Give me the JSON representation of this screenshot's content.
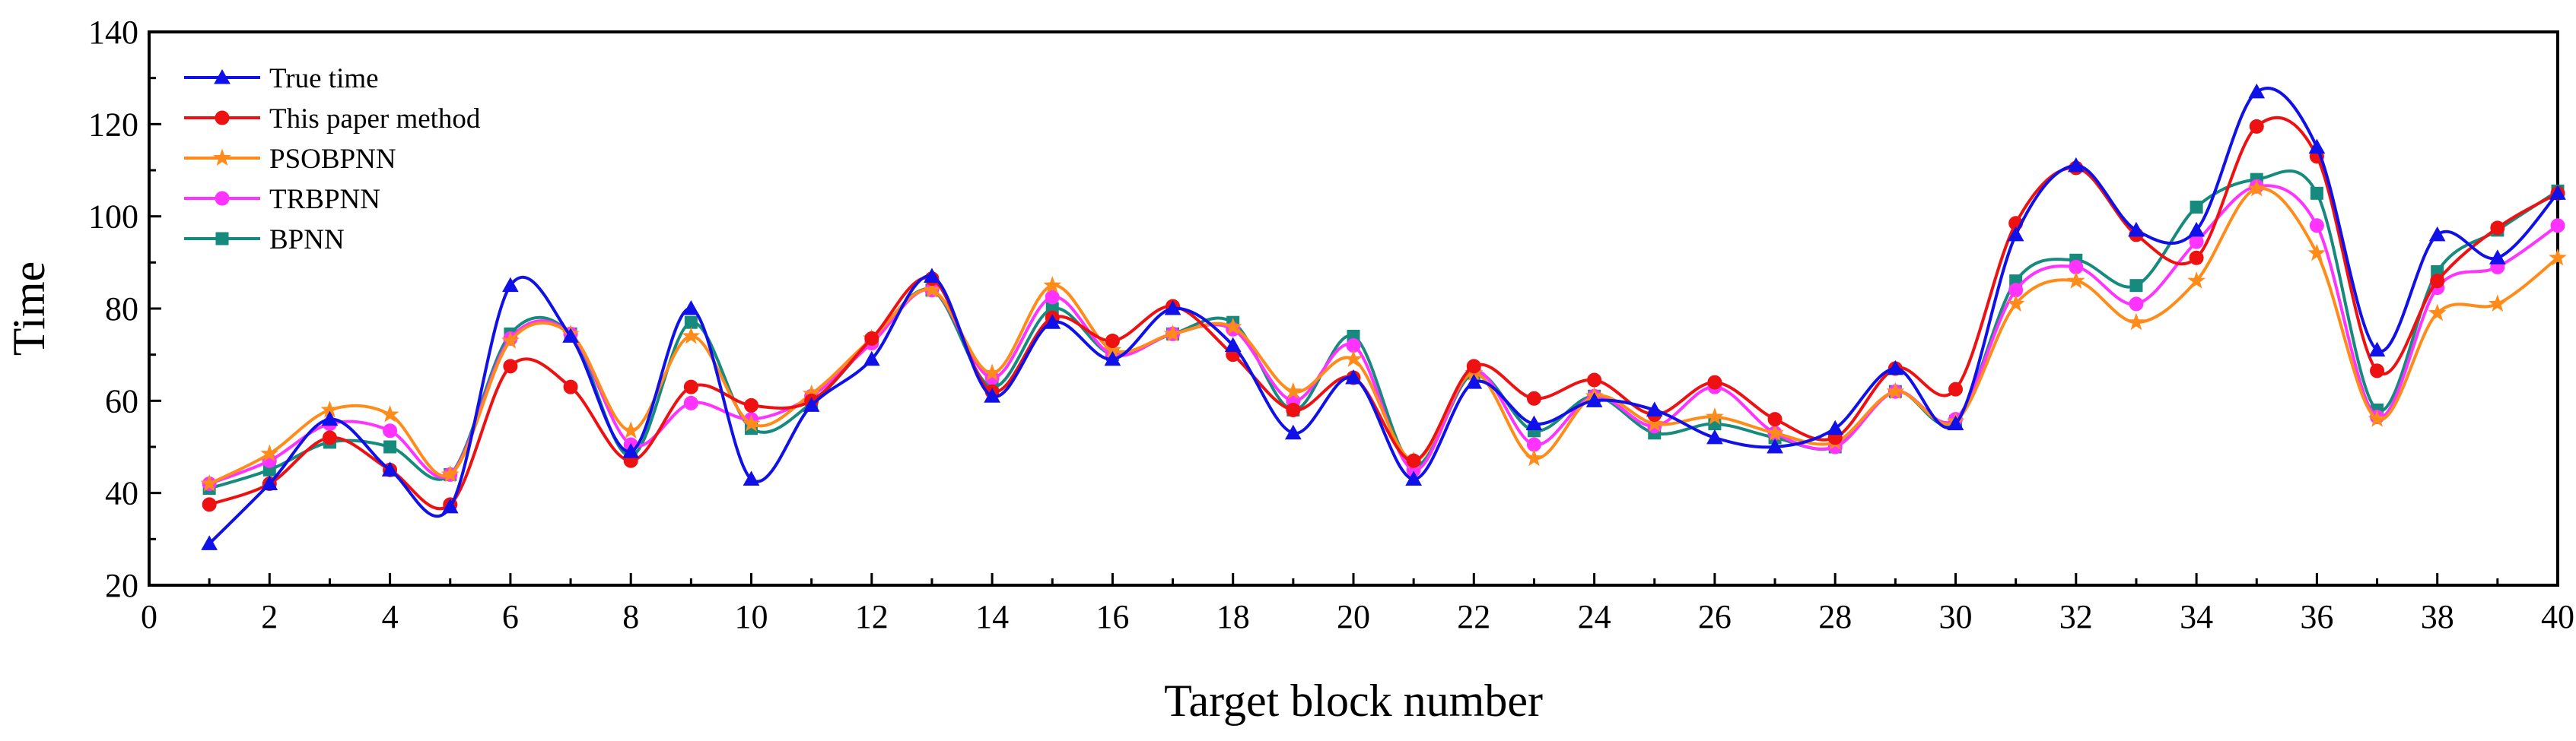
{
  "chart_data": {
    "type": "line",
    "title": "",
    "xlabel": "Target block number",
    "ylabel": "Time",
    "xlim": [
      0,
      40
    ],
    "ylim": [
      20,
      140
    ],
    "xticks": [
      0,
      2,
      4,
      6,
      8,
      10,
      12,
      14,
      16,
      18,
      20,
      22,
      24,
      26,
      28,
      30,
      32,
      34,
      36,
      38,
      40
    ],
    "yticks": [
      20,
      40,
      60,
      80,
      100,
      120,
      140
    ],
    "grid": false,
    "legend_position": "top-left",
    "x": [
      1,
      2,
      3,
      4,
      5,
      6,
      7,
      8,
      9,
      10,
      11,
      12,
      13,
      14,
      15,
      16,
      17,
      18,
      19,
      20,
      21,
      22,
      23,
      24,
      25,
      26,
      27,
      28,
      29,
      30,
      31,
      32,
      33,
      34,
      35,
      36,
      37,
      38,
      39,
      40
    ],
    "series": [
      {
        "name": "True time",
        "color": "#1010e8",
        "marker": "triangle",
        "values": [
          29,
          42,
          56,
          45,
          37,
          85,
          74,
          49,
          80,
          43,
          59,
          69,
          87,
          61,
          77,
          69,
          80,
          72,
          53,
          65,
          43,
          64,
          55,
          60,
          58,
          52,
          50,
          54,
          67,
          55,
          96,
          111,
          97,
          97,
          127,
          115,
          71,
          96,
          91,
          105
        ]
      },
      {
        "name": "This paper method",
        "color": "#ee1111",
        "marker": "circle",
        "values": [
          37.5,
          42,
          52,
          45,
          37.5,
          67.5,
          63,
          47,
          63,
          59,
          60,
          73.5,
          86.5,
          62,
          78,
          73,
          80.5,
          70,
          58,
          65,
          47,
          67.5,
          60.5,
          64.5,
          57,
          64,
          56,
          52,
          67,
          62.5,
          98.5,
          110.5,
          96,
          91,
          119.5,
          113,
          66.5,
          86,
          97.5,
          105
        ]
      },
      {
        "name": "PSOBPNN",
        "color": "#ff8c1a",
        "marker": "star",
        "values": [
          42,
          48.5,
          58,
          57,
          44,
          73,
          74.5,
          53.5,
          74,
          55,
          61.5,
          73.5,
          84,
          66,
          85,
          71,
          74.5,
          76,
          62,
          69,
          47,
          66,
          47.5,
          61,
          55,
          56.5,
          53,
          51,
          62,
          55.5,
          81,
          86,
          77,
          86,
          106,
          92,
          56,
          79,
          81,
          91
        ]
      },
      {
        "name": "TRBPNN",
        "color": "#ff33ff",
        "marker": "circle",
        "values": [
          42,
          47,
          55,
          53.5,
          44,
          73.5,
          74.5,
          50.5,
          59.5,
          56,
          61,
          72.5,
          84,
          65,
          82.5,
          70,
          74.5,
          75.5,
          60,
          72,
          45,
          66.5,
          50.5,
          61,
          54.5,
          63,
          53,
          50,
          62,
          56,
          84,
          89,
          81,
          94.5,
          106.5,
          98,
          56.5,
          84.5,
          89,
          98
        ]
      },
      {
        "name": "BPNN",
        "color": "#178a7e",
        "marker": "square",
        "values": [
          41,
          45,
          51,
          50,
          44,
          74.5,
          74.5,
          48,
          77,
          54,
          59.5,
          73,
          84,
          63,
          80,
          70,
          74.5,
          77,
          58,
          74,
          46,
          66,
          53.5,
          61,
          53,
          55,
          52,
          50,
          62,
          55.5,
          86,
          90.5,
          85,
          102,
          108,
          105,
          58,
          88,
          97,
          105.5
        ]
      }
    ]
  }
}
